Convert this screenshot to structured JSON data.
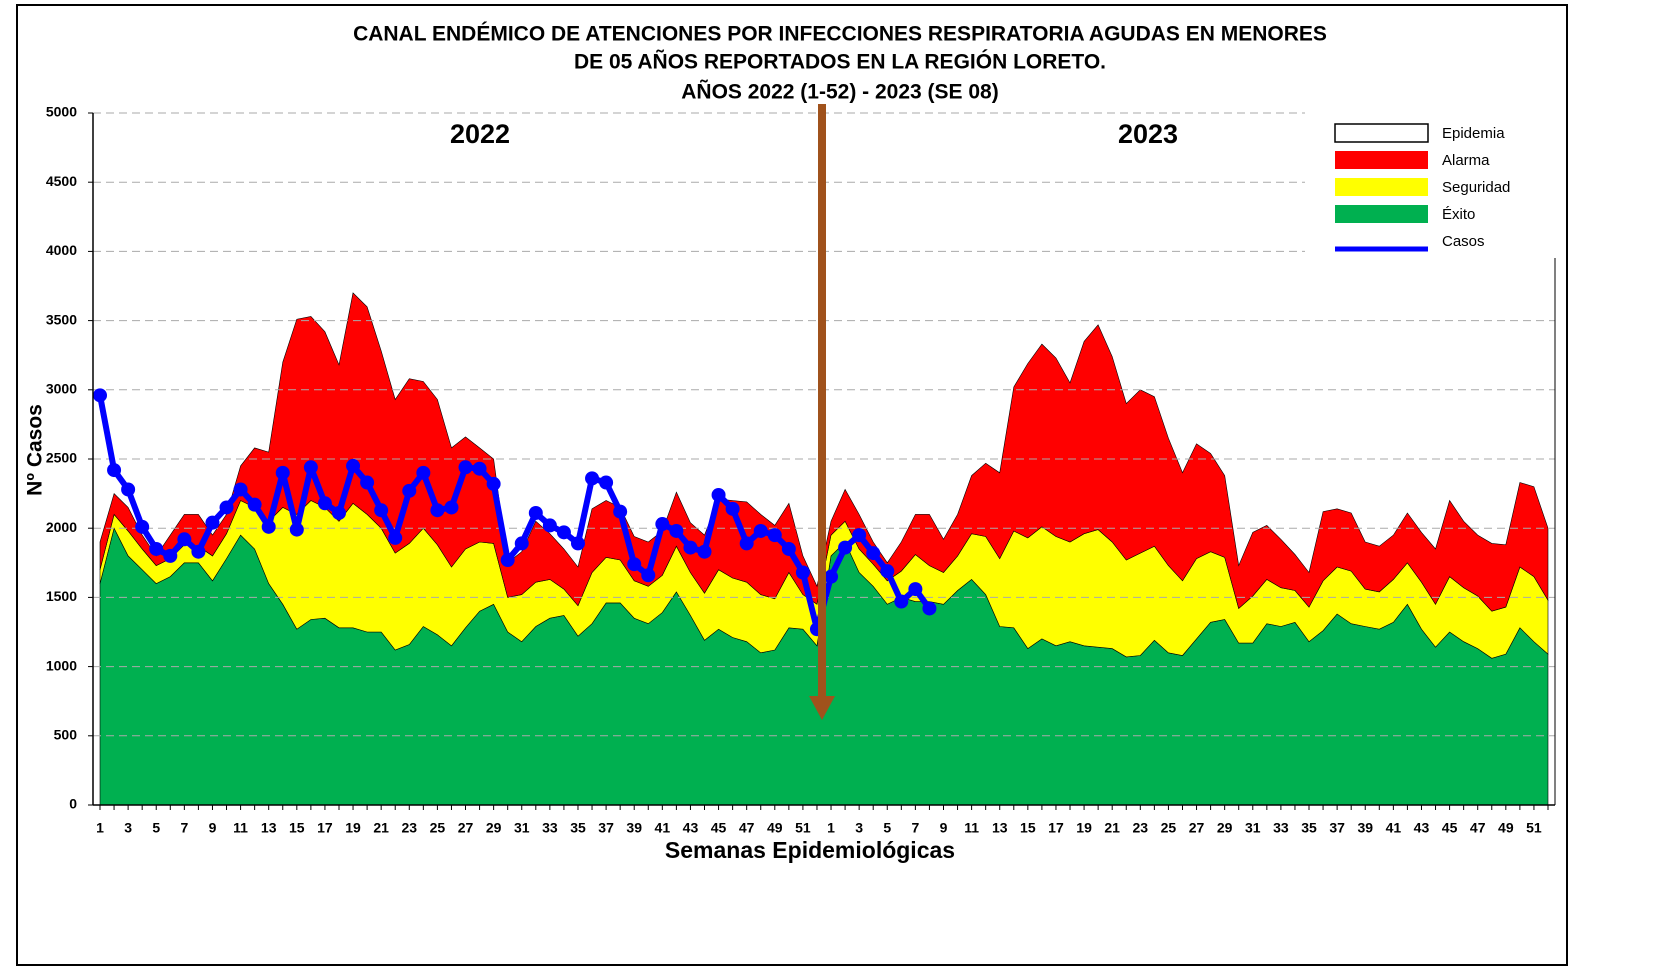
{
  "chart_data": {
    "type": "stacked_area_line",
    "title": [
      "CANAL ENDÉMICO DE ATENCIONES POR INFECCIONES RESPIRATORIA AGUDAS EN MENORES",
      "DE 05 AÑOS REPORTADOS EN LA REGIÓN LORETO.",
      "AÑOS 2022 (1-52) - 2023 (SE 08)"
    ],
    "y_label": "Nº Casos",
    "x_label": "Semanas Epidemiológicas",
    "annotations": [
      "2022",
      "2023"
    ],
    "categories": [
      "1",
      null,
      "3",
      null,
      "5",
      null,
      "7",
      null,
      "9",
      null,
      "11",
      null,
      "13",
      null,
      "15",
      null,
      "17",
      null,
      "19",
      null,
      "21",
      null,
      "23",
      null,
      "25",
      null,
      "27",
      null,
      "29",
      null,
      "31",
      null,
      "33",
      null,
      "35",
      null,
      "37",
      null,
      "39",
      null,
      "41",
      null,
      "43",
      null,
      "45",
      null,
      "47",
      null,
      "49",
      null,
      "51",
      null,
      "1",
      null,
      "3",
      null,
      "5",
      null,
      "7",
      null,
      "9",
      null,
      "11",
      null,
      "13",
      null,
      "15",
      null,
      "17",
      null,
      "19",
      null,
      "21",
      null,
      "23",
      null,
      "25",
      null,
      "27",
      null,
      "29",
      null,
      "31",
      null,
      "33",
      null,
      "35",
      null,
      "37",
      null,
      "39",
      null,
      "41",
      null,
      "43",
      null,
      "45",
      null,
      "47",
      null,
      "49",
      null,
      "51",
      null
    ],
    "ylim": [
      0,
      5000
    ],
    "yticks": [
      0,
      500,
      1000,
      1500,
      2000,
      2500,
      3000,
      3500,
      4000,
      4500,
      5000
    ],
    "grid": true,
    "legend": "top-right",
    "series": [
      {
        "name": "Epidemia",
        "color": "#ffffff"
      },
      {
        "name": "Alarma",
        "color": "#ff0000",
        "kind": "area",
        "values": [
          200,
          150,
          170,
          100,
          70,
          170,
          220,
          230,
          150,
          140,
          250,
          430,
          500,
          1050,
          1410,
          1330,
          1270,
          1130,
          1520,
          1500,
          1280,
          1110,
          1190,
          1060,
          1050,
          860,
          810,
          680,
          610,
          250,
          310,
          440,
          330,
          290,
          280,
          460,
          410,
          380,
          320,
          320,
          320,
          390,
          360,
          420,
          510,
          560,
          580,
          580,
          530,
          500,
          280,
          130,
          100,
          230,
          250,
          160,
          130,
          210,
          290,
          370,
          240,
          300,
          420,
          530,
          620,
          1040,
          1260,
          1320,
          1290,
          1150,
          1390,
          1480,
          1340,
          1130,
          1180,
          1080,
          920,
          780,
          830,
          710,
          590,
          310,
          460,
          390,
          350,
          260,
          250,
          500,
          420,
          420,
          340,
          330,
          320,
          360,
          360,
          400,
          550,
          480,
          440,
          490,
          450,
          610,
          650,
          520
        ]
      },
      {
        "name": "Seguridad",
        "color": "#ffff00",
        "kind": "area",
        "values": [
          100,
          100,
          180,
          150,
          130,
          130,
          130,
          120,
          180,
          180,
          250,
          300,
          450,
          700,
          830,
          860,
          800,
          770,
          900,
          850,
          750,
          700,
          730,
          710,
          650,
          570,
          570,
          500,
          440,
          250,
          340,
          320,
          280,
          190,
          220,
          370,
          330,
          310,
          270,
          270,
          270,
          330,
          310,
          340,
          430,
          430,
          430,
          420,
          370,
          400,
          250,
          300,
          150,
          150,
          170,
          160,
          170,
          190,
          340,
          260,
          230,
          250,
          330,
          420,
          490,
          700,
          800,
          810,
          790,
          720,
          810,
          850,
          770,
          700,
          740,
          680,
          630,
          540,
          580,
          510,
          450,
          250,
          340,
          320,
          280,
          230,
          250,
          360,
          340,
          380,
          270,
          270,
          310,
          300,
          340,
          310,
          400,
          390,
          380,
          340,
          340,
          440,
          470,
          390
        ]
      },
      {
        "name": "Éxito",
        "color": "#00b050",
        "kind": "area",
        "values": [
          1600,
          2000,
          1800,
          1700,
          1600,
          1650,
          1750,
          1750,
          1620,
          1780,
          1950,
          1850,
          1600,
          1450,
          1270,
          1340,
          1350,
          1280,
          1280,
          1250,
          1250,
          1120,
          1160,
          1290,
          1230,
          1150,
          1280,
          1400,
          1450,
          1250,
          1180,
          1290,
          1350,
          1370,
          1220,
          1310,
          1460,
          1460,
          1350,
          1310,
          1390,
          1540,
          1370,
          1190,
          1270,
          1210,
          1180,
          1100,
          1120,
          1280,
          1270,
          1150,
          1800,
          1900,
          1680,
          1580,
          1450,
          1500,
          1470,
          1470,
          1450,
          1550,
          1630,
          1520,
          1290,
          1280,
          1130,
          1200,
          1150,
          1180,
          1150,
          1140,
          1130,
          1070,
          1080,
          1190,
          1100,
          1080,
          1200,
          1320,
          1340,
          1170,
          1170,
          1310,
          1290,
          1320,
          1180,
          1260,
          1380,
          1310,
          1290,
          1270,
          1320,
          1450,
          1270,
          1140,
          1250,
          1180,
          1130,
          1060,
          1090,
          1280,
          1180,
          1090
        ]
      },
      {
        "name": "Casos",
        "color": "#0000ff",
        "kind": "line",
        "values": [
          2960,
          2420,
          2280,
          2010,
          1850,
          1800,
          1920,
          1830,
          2040,
          2150,
          2280,
          2170,
          2010,
          2400,
          1990,
          2440,
          2180,
          2110,
          2450,
          2330,
          2130,
          1930,
          2270,
          2400,
          2130,
          2150,
          2440,
          2430,
          2320,
          1770,
          1890,
          2110,
          2020,
          1970,
          1890,
          2360,
          2330,
          2120,
          1740,
          1660,
          2030,
          1980,
          1860,
          1830,
          2240,
          2140,
          1890,
          1980,
          1950,
          1850,
          1680,
          1270,
          1650,
          1860,
          1950,
          1820,
          1690,
          1470,
          1560,
          1420,
          null,
          null,
          null,
          null,
          null,
          null,
          null,
          null,
          null,
          null,
          null,
          null,
          null,
          null,
          null,
          null,
          null,
          null,
          null,
          null,
          null,
          null,
          null,
          null,
          null,
          null,
          null,
          null,
          null,
          null,
          null,
          null,
          null,
          null,
          null,
          null,
          null,
          null,
          null,
          null,
          null,
          null,
          null,
          null
        ]
      }
    ]
  }
}
